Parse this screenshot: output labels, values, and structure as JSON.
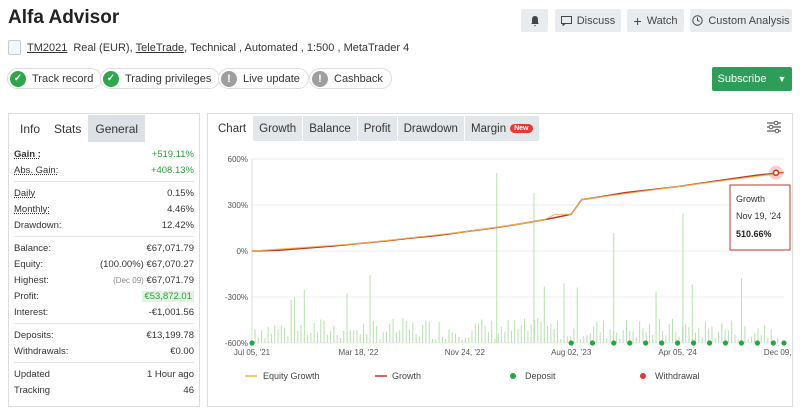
{
  "header": {
    "title": "Alfa Advisor",
    "discuss_label": "Discuss",
    "watch_label": "Watch",
    "analysis_label": "Custom Analysis"
  },
  "account": {
    "id": "TM2021",
    "type": "Real (EUR),",
    "broker": "TeleTrade",
    "rest": ", Technical , Automated , 1:500 , MetaTrader 4"
  },
  "badges": [
    {
      "label": "Track record",
      "status": "ok"
    },
    {
      "label": "Trading privileges",
      "status": "ok"
    },
    {
      "label": "Live update",
      "status": "warn"
    },
    {
      "label": "Cashback",
      "status": "warn"
    }
  ],
  "subscribe_label": "Subscribe",
  "left_tabs": [
    "Info",
    "Stats",
    "General"
  ],
  "stats": {
    "gain_label": "Gain :",
    "gain": "+519.11%",
    "abs_gain_label": "Abs. Gain:",
    "abs_gain": "+408.13%",
    "daily_label": "Daily",
    "daily": "0.15%",
    "monthly_label": "Monthly:",
    "monthly": "4.46%",
    "drawdown_label": "Drawdown:",
    "drawdown": "12.42%",
    "balance_label": "Balance:",
    "balance": "€67,071.79",
    "equity_label": "Equity:",
    "equity_pct": "(100.00%)",
    "equity": "€67,070.27",
    "highest_label": "Highest:",
    "highest_date": "(Dec 09)",
    "highest": "€67,071.79",
    "profit_label": "Profit:",
    "profit": "€53,872.01",
    "interest_label": "Interest:",
    "interest": "-€1,001.56",
    "deposits_label": "Deposits:",
    "deposits": "€13,199.78",
    "withdrawals_label": "Withdrawals:",
    "withdrawals": "€0.00",
    "updated_label": "Updated",
    "updated": "1 Hour ago",
    "tracking_label": "Tracking",
    "tracking": "46"
  },
  "right_tabs": {
    "chart": "Chart",
    "growth": "Growth",
    "balance": "Balance",
    "profit": "Profit",
    "drawdown": "Drawdown",
    "margin": "Margin",
    "new": "New"
  },
  "colors": {
    "growth": "#c0392b",
    "equity_growth": "#f0b44c",
    "deposit": "#27a34a",
    "withdrawal": "#e53935",
    "bars": "#b8e0b0",
    "subscribe": "#2e9d5a"
  },
  "chart_data": {
    "type": "line",
    "ylim": [
      -600,
      600
    ],
    "yticks": [
      "600%",
      "300%",
      "0%",
      "-300%",
      "-600%"
    ],
    "xticks": [
      "Jul 05, '21",
      "Mar 18, '22",
      "Nov 24, '22",
      "Aug 02, '23",
      "Apr 05, '24",
      "Dec 09, '24"
    ],
    "series": [
      {
        "name": "Growth",
        "points": [
          [
            0,
            0
          ],
          [
            0.05,
            5
          ],
          [
            0.1,
            18
          ],
          [
            0.15,
            32
          ],
          [
            0.2,
            48
          ],
          [
            0.25,
            65
          ],
          [
            0.3,
            85
          ],
          [
            0.35,
            102
          ],
          [
            0.4,
            125
          ],
          [
            0.45,
            148
          ],
          [
            0.5,
            175
          ],
          [
            0.55,
            205
          ],
          [
            0.58,
            225
          ],
          [
            0.6,
            240
          ],
          [
            0.62,
            335
          ],
          [
            0.65,
            350
          ],
          [
            0.7,
            380
          ],
          [
            0.75,
            400
          ],
          [
            0.8,
            420
          ],
          [
            0.85,
            445
          ],
          [
            0.9,
            470
          ],
          [
            0.95,
            495
          ],
          [
            0.98,
            505
          ],
          [
            1,
            512
          ]
        ]
      },
      {
        "name": "Equity Growth",
        "points": [
          [
            0,
            0
          ],
          [
            0.2,
            48
          ],
          [
            0.4,
            125
          ],
          [
            0.5,
            175
          ],
          [
            0.55,
            205
          ],
          [
            0.57,
            240
          ],
          [
            0.6,
            240
          ],
          [
            0.62,
            335
          ],
          [
            0.8,
            420
          ],
          [
            1,
            510
          ]
        ]
      }
    ],
    "tooltip": {
      "label": "Growth",
      "date": "Nov 19, '24",
      "value": "510.66%"
    },
    "legend": [
      "Equity Growth",
      "Growth",
      "Deposit",
      "Withdrawal"
    ]
  }
}
